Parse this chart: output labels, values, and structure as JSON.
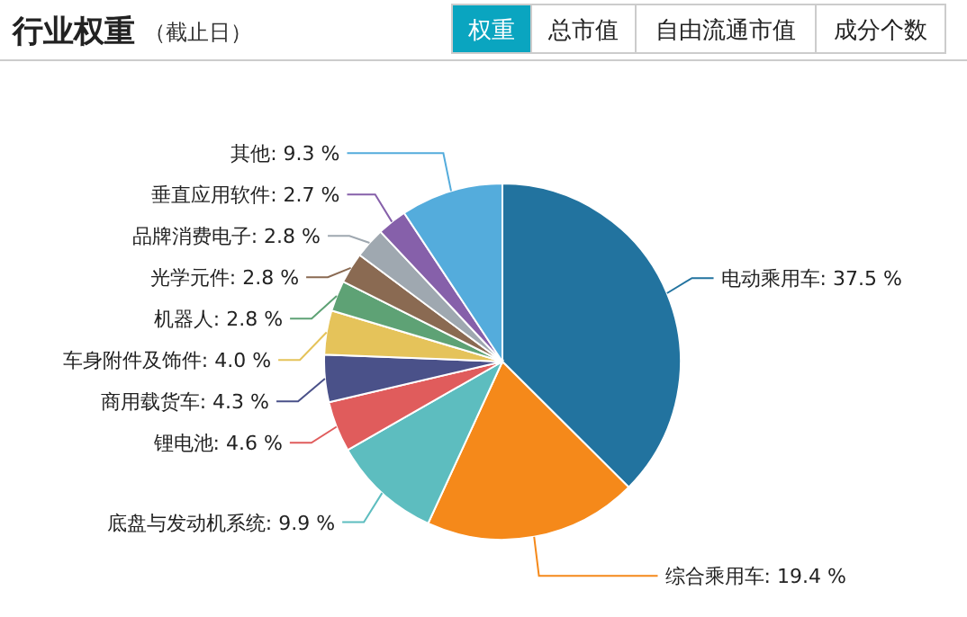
{
  "chart_data": {
    "type": "pie",
    "title": "行业权重",
    "subtitle": "（截止日）",
    "annotations": [
      "权重",
      "总市值",
      "自由流通市值",
      "成分个数"
    ],
    "categories": [
      "电动乘用车",
      "综合乘用车",
      "底盘与发动机系统",
      "锂电池",
      "商用载货车",
      "车身附件及饰件",
      "机器人",
      "光学元件",
      "品牌消费电子",
      "垂直应用软件",
      "其他"
    ],
    "values": [
      37.5,
      19.4,
      9.9,
      4.6,
      4.3,
      4.0,
      2.8,
      2.8,
      2.8,
      2.7,
      9.3
    ],
    "colors": [
      "#22739f",
      "#f5891a",
      "#5dbdbf",
      "#e05c5c",
      "#4a5189",
      "#e5c35a",
      "#5ea275",
      "#8a6a52",
      "#9fa8b0",
      "#8660aa",
      "#54acdc"
    ],
    "value_labels": [
      ": 37.5 %",
      ": 19.4 %",
      ": 9.9 %",
      ": 4.6 %",
      ": 4.3 %",
      ": 4.0 %",
      ": 2.8 %",
      ": 2.8 %",
      ": 2.8 %",
      ": 2.7 %",
      ": 9.3 %"
    ]
  }
}
